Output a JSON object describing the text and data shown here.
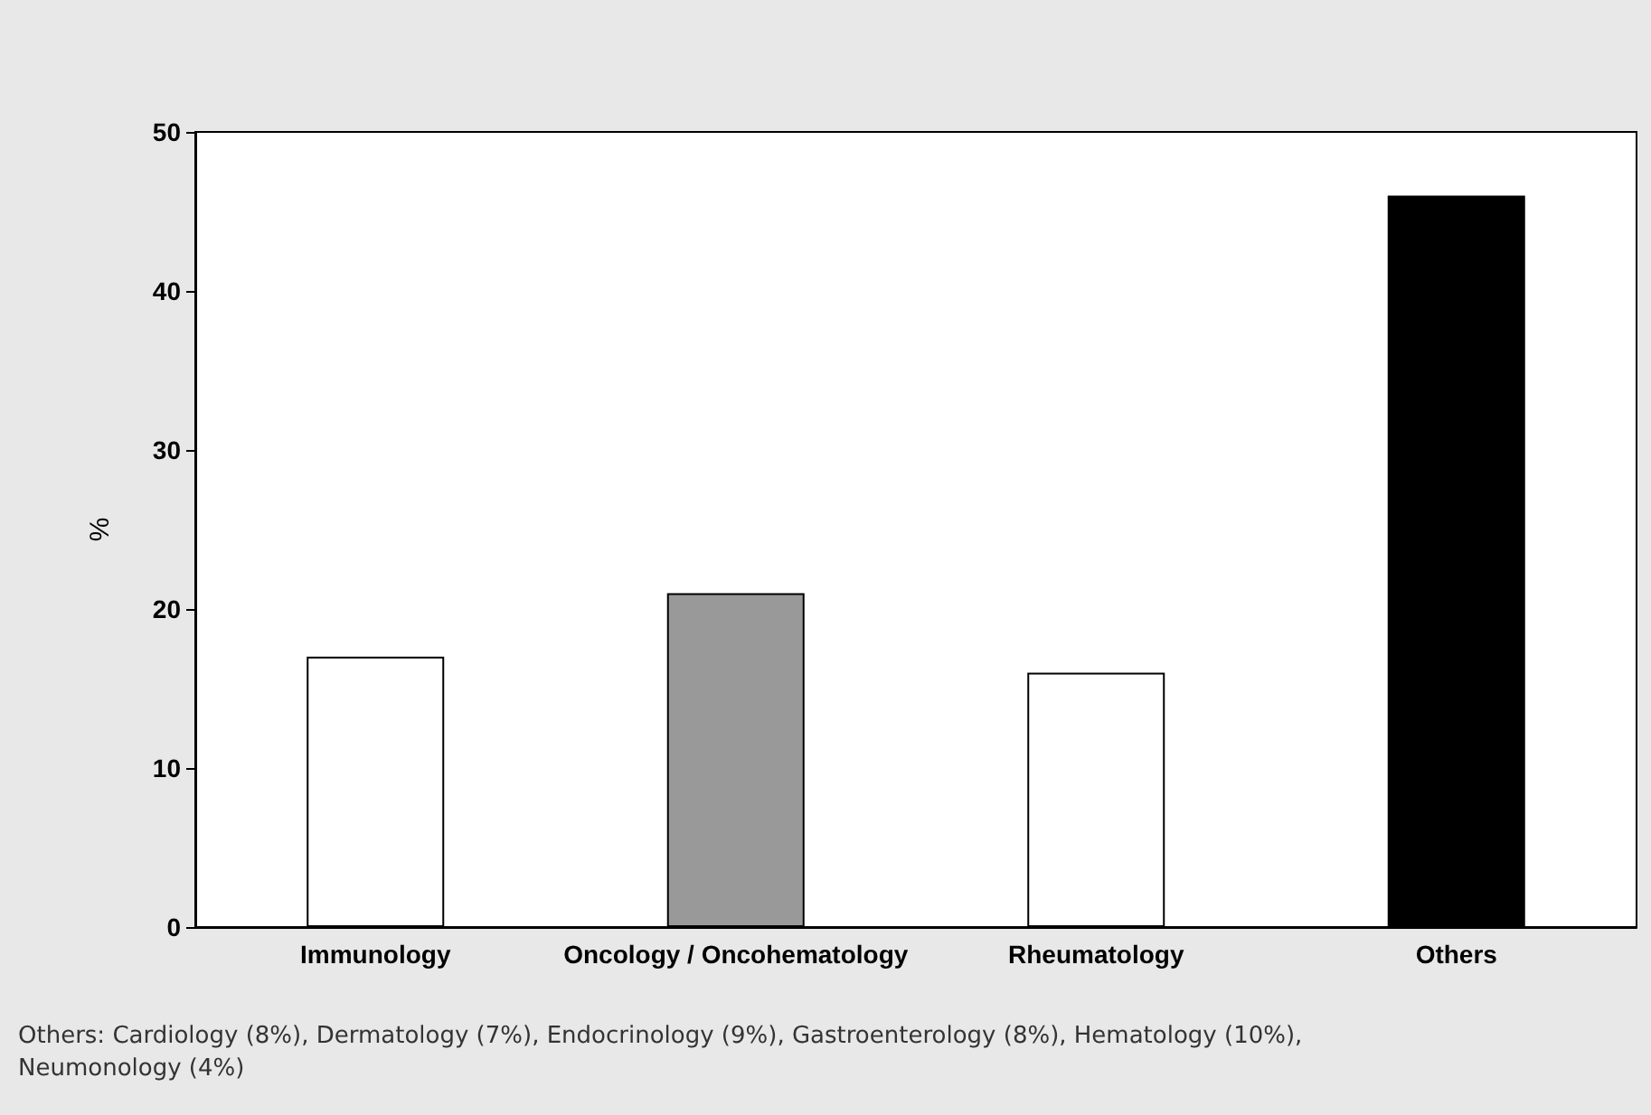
{
  "chart_data": {
    "type": "bar",
    "ylabel": "%",
    "categories": [
      "Immunology",
      "Oncology / Oncohematology",
      "Rheumatology",
      "Others"
    ],
    "values": [
      17,
      21,
      16,
      46
    ],
    "colors": [
      "#ffffff",
      "#999999",
      "#ffffff",
      "#000000"
    ],
    "ylim": [
      0,
      50
    ],
    "yticks": [
      0,
      10,
      20,
      30,
      40,
      50
    ],
    "grid": false,
    "annotations": [
      "Others: Cardiology (8%), Dermatology (7%), Endocrinology (9%), Gastroenterology (8%), Hematology (10%), Neumonology (4%)"
    ]
  }
}
